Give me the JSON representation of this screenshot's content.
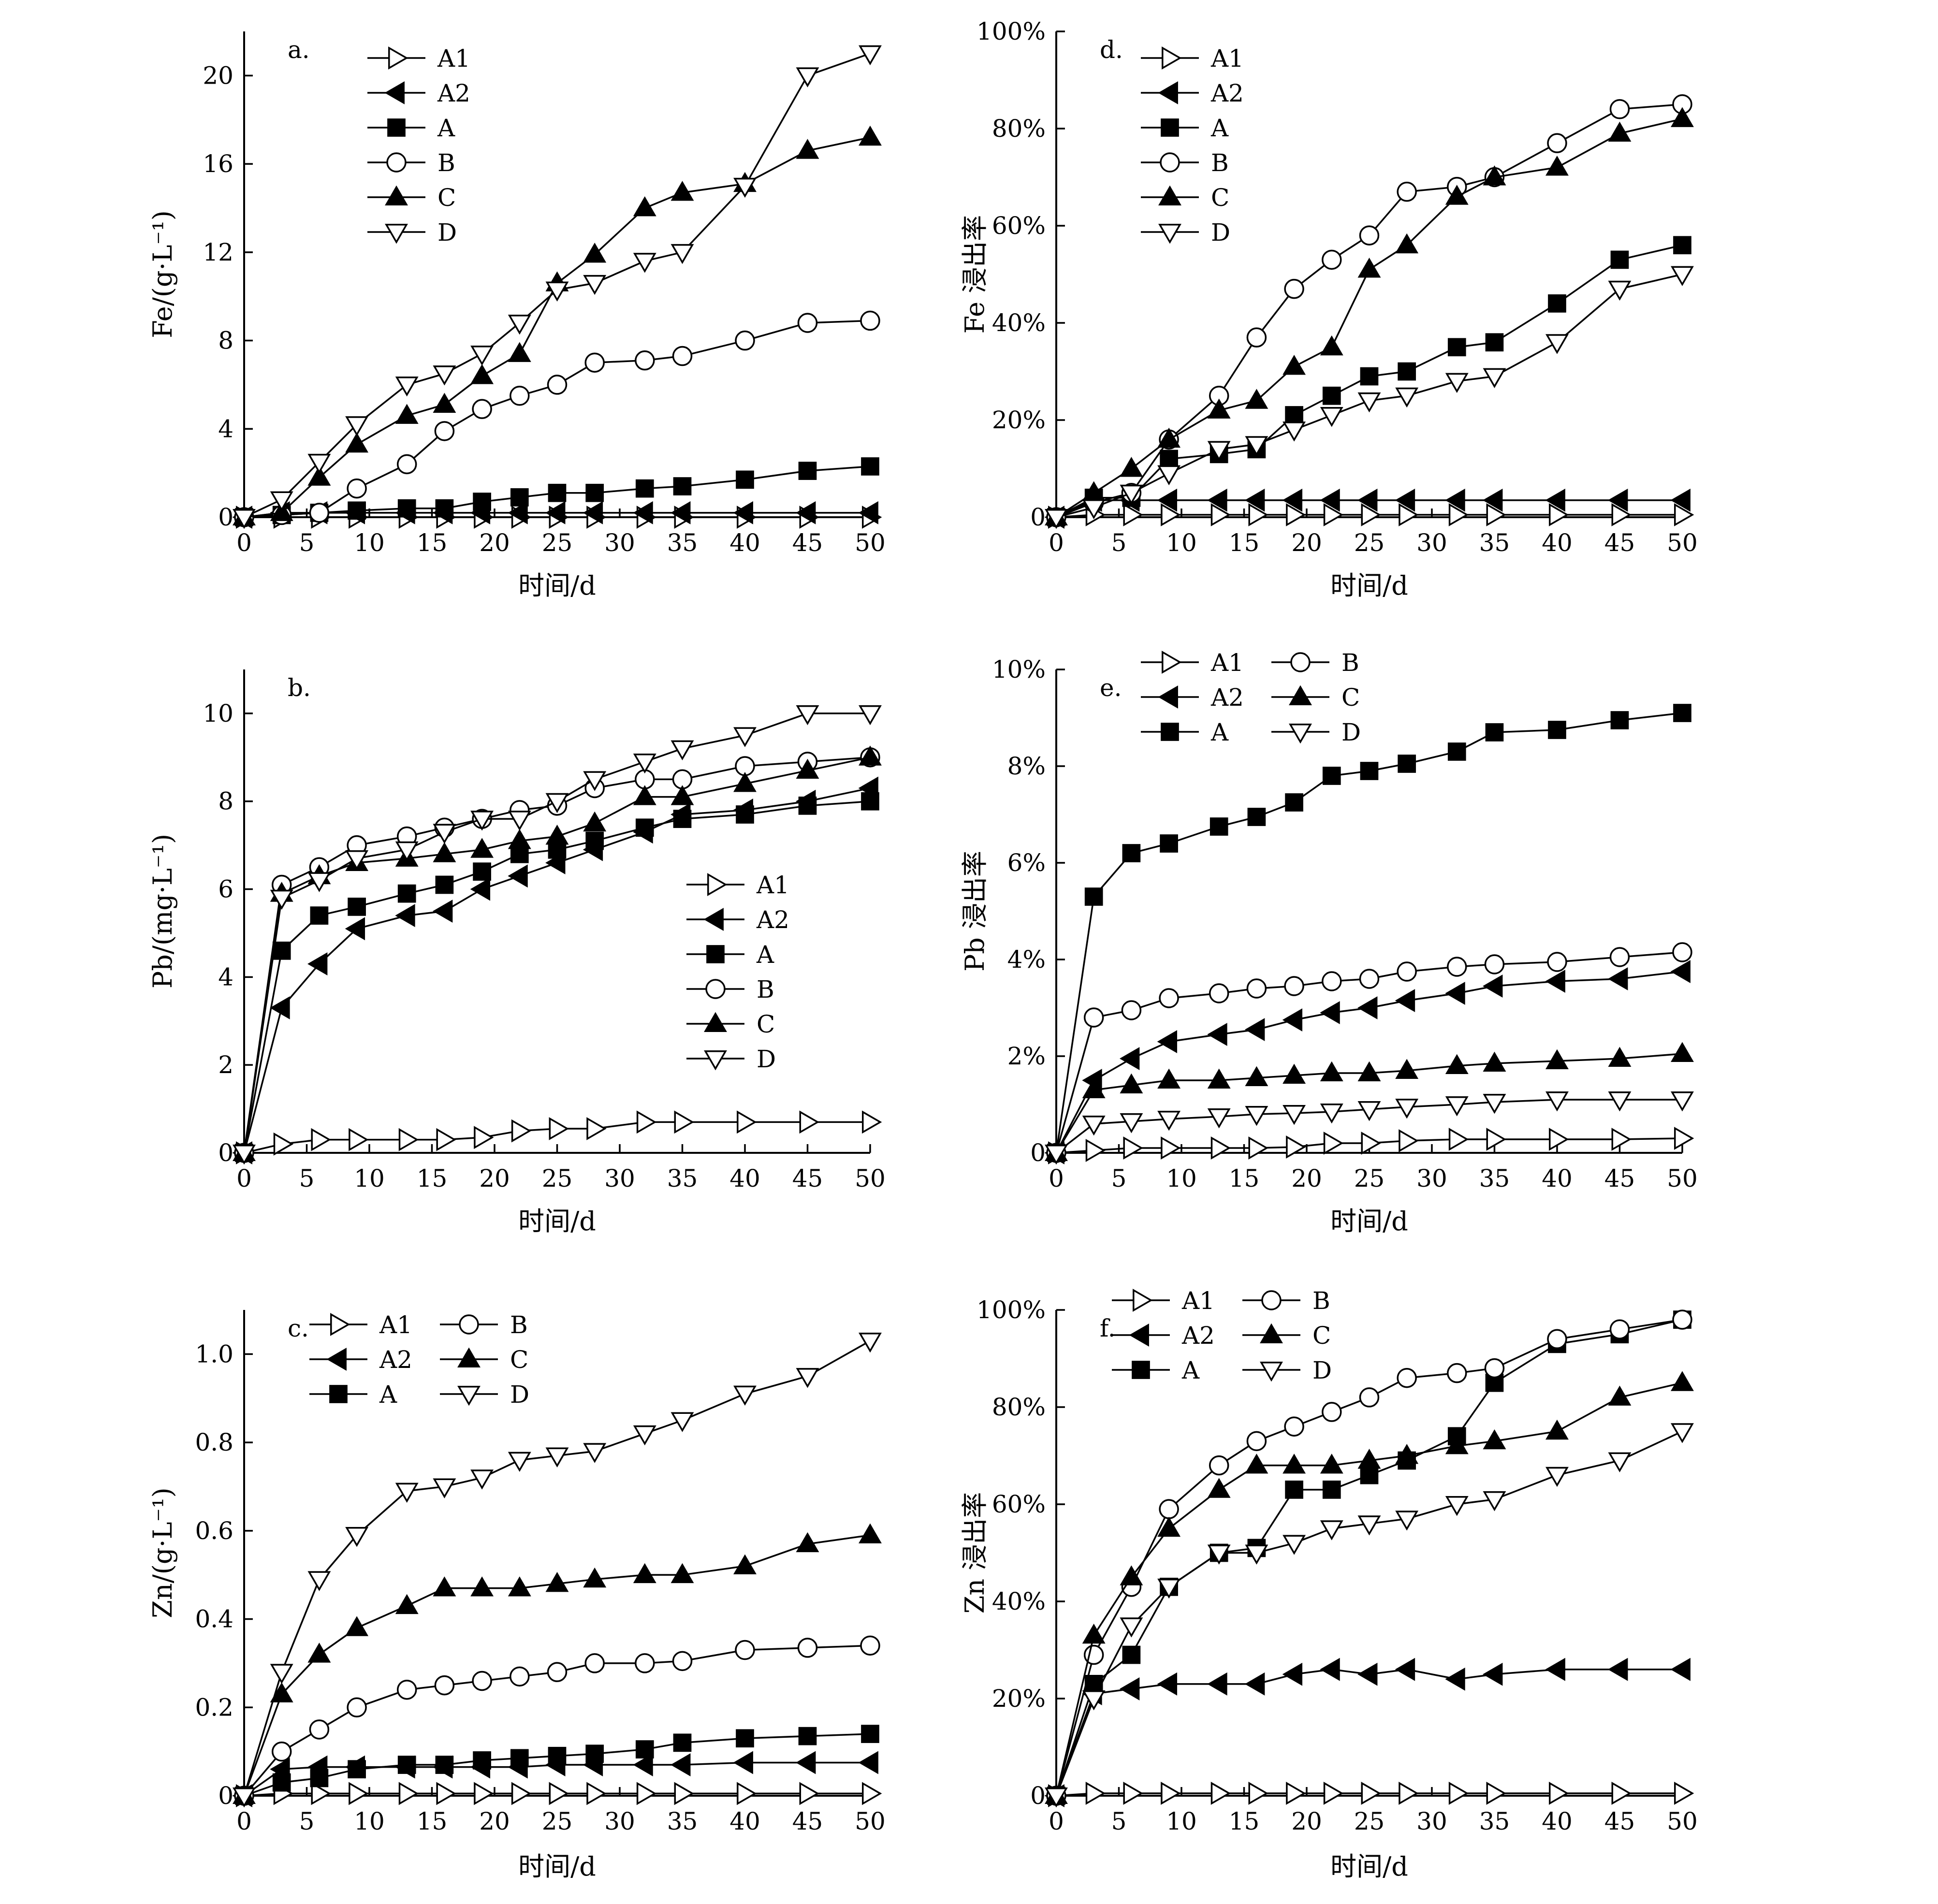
{
  "figure": {
    "xlabel": "时间/d"
  },
  "chart_data": [
    {
      "id": "a",
      "panel_label": "a.",
      "type": "line",
      "ylabel": "Fe/(g·L⁻¹)",
      "xlim": [
        0,
        50
      ],
      "ylim": [
        0,
        22
      ],
      "xticks": [
        0,
        5,
        10,
        15,
        20,
        25,
        30,
        35,
        40,
        45,
        50
      ],
      "yticks": [
        0,
        4,
        8,
        12,
        16,
        20
      ],
      "ytick_labels": [
        "0",
        "4",
        "8",
        "12",
        "16",
        "20"
      ],
      "legend": {
        "placement": "top-center",
        "columns": 1
      },
      "x": [
        0,
        3,
        6,
        9,
        13,
        16,
        19,
        22,
        25,
        28,
        32,
        35,
        40,
        45,
        50
      ],
      "series": [
        {
          "name": "A1",
          "marker": "tri-right-open",
          "values": [
            0,
            0,
            0,
            0,
            0,
            0,
            0,
            0,
            0,
            0,
            0,
            0,
            0,
            0,
            0
          ]
        },
        {
          "name": "A2",
          "marker": "tri-left-filled",
          "values": [
            0,
            0.2,
            0.2,
            0.2,
            0.2,
            0.2,
            0.2,
            0.2,
            0.2,
            0.2,
            0.2,
            0.2,
            0.2,
            0.2,
            0.2
          ]
        },
        {
          "name": "A",
          "marker": "square-filled",
          "values": [
            0,
            0.1,
            0.2,
            0.3,
            0.4,
            0.4,
            0.7,
            0.9,
            1.1,
            1.1,
            1.3,
            1.4,
            1.7,
            2.1,
            2.3
          ]
        },
        {
          "name": "B",
          "marker": "circle-open",
          "values": [
            0,
            0.1,
            0.2,
            1.3,
            2.4,
            3.9,
            4.9,
            5.5,
            6.0,
            7.0,
            7.1,
            7.3,
            8.0,
            8.8,
            8.9
          ]
        },
        {
          "name": "C",
          "marker": "tri-up-filled",
          "values": [
            0,
            0.2,
            1.8,
            3.3,
            4.6,
            5.1,
            6.4,
            7.4,
            10.6,
            11.9,
            14.0,
            14.7,
            15.1,
            16.6,
            17.2
          ]
        },
        {
          "name": "D",
          "marker": "tri-down-open",
          "values": [
            0,
            0.8,
            2.5,
            4.2,
            6.0,
            6.5,
            7.4,
            8.8,
            10.3,
            10.6,
            11.6,
            12.0,
            15.0,
            20.0,
            21.0
          ]
        }
      ]
    },
    {
      "id": "b",
      "panel_label": "b.",
      "type": "line",
      "ylabel": "Pb/(mg·L⁻¹)",
      "xlim": [
        0,
        50
      ],
      "ylim": [
        0,
        11
      ],
      "xticks": [
        0,
        5,
        10,
        15,
        20,
        25,
        30,
        35,
        40,
        45,
        50
      ],
      "yticks": [
        0,
        2,
        4,
        6,
        8,
        10
      ],
      "ytick_labels": [
        "0",
        "2",
        "4",
        "6",
        "8",
        "10"
      ],
      "legend": {
        "placement": "center-right",
        "columns": 1
      },
      "x": [
        0,
        3,
        6,
        9,
        13,
        16,
        19,
        22,
        25,
        28,
        32,
        35,
        40,
        45,
        50
      ],
      "series": [
        {
          "name": "A1",
          "marker": "tri-right-open",
          "values": [
            0,
            0.2,
            0.3,
            0.3,
            0.3,
            0.3,
            0.35,
            0.5,
            0.55,
            0.55,
            0.7,
            0.7,
            0.7,
            0.7,
            0.7
          ]
        },
        {
          "name": "A2",
          "marker": "tri-left-filled",
          "values": [
            0,
            3.3,
            4.3,
            5.1,
            5.4,
            5.5,
            6.0,
            6.3,
            6.6,
            6.9,
            7.3,
            7.7,
            7.8,
            8.0,
            8.3
          ]
        },
        {
          "name": "A",
          "marker": "square-filled",
          "values": [
            0,
            4.6,
            5.4,
            5.6,
            5.9,
            6.1,
            6.4,
            6.8,
            6.9,
            7.1,
            7.4,
            7.6,
            7.7,
            7.9,
            8.0
          ]
        },
        {
          "name": "B",
          "marker": "circle-open",
          "values": [
            0,
            6.1,
            6.5,
            7.0,
            7.2,
            7.4,
            7.6,
            7.8,
            7.9,
            8.3,
            8.5,
            8.5,
            8.8,
            8.9,
            9.0
          ]
        },
        {
          "name": "C",
          "marker": "tri-up-filled",
          "values": [
            0,
            5.9,
            6.3,
            6.6,
            6.7,
            6.8,
            6.9,
            7.1,
            7.2,
            7.5,
            8.1,
            8.1,
            8.4,
            8.7,
            9.0
          ]
        },
        {
          "name": "D",
          "marker": "tri-down-open",
          "values": [
            0,
            5.8,
            6.2,
            6.7,
            6.9,
            7.3,
            7.6,
            7.6,
            8.0,
            8.5,
            8.9,
            9.2,
            9.5,
            10.0,
            10.0
          ]
        }
      ]
    },
    {
      "id": "c",
      "panel_label": "c.",
      "type": "line",
      "ylabel": "Zn/(g·L⁻¹)",
      "xlim": [
        0,
        50
      ],
      "ylim": [
        0,
        1.1
      ],
      "xticks": [
        0,
        5,
        10,
        15,
        20,
        25,
        30,
        35,
        40,
        45,
        50
      ],
      "yticks": [
        0,
        0.2,
        0.4,
        0.6,
        0.8,
        1.0
      ],
      "ytick_labels": [
        "0",
        "0.2",
        "0.4",
        "0.6",
        "0.8",
        "1.0"
      ],
      "legend": {
        "placement": "top-center",
        "columns": 2
      },
      "x": [
        0,
        3,
        6,
        9,
        13,
        16,
        19,
        22,
        25,
        28,
        32,
        35,
        40,
        45,
        50
      ],
      "series": [
        {
          "name": "A1",
          "marker": "tri-right-open",
          "values": [
            0,
            0.005,
            0.005,
            0.005,
            0.005,
            0.005,
            0.005,
            0.005,
            0.005,
            0.005,
            0.005,
            0.005,
            0.005,
            0.005,
            0.005
          ]
        },
        {
          "name": "A2",
          "marker": "tri-left-filled",
          "values": [
            0,
            0.06,
            0.065,
            0.065,
            0.065,
            0.065,
            0.065,
            0.065,
            0.07,
            0.07,
            0.07,
            0.07,
            0.075,
            0.075,
            0.075
          ]
        },
        {
          "name": "A",
          "marker": "square-filled",
          "values": [
            0,
            0.03,
            0.04,
            0.06,
            0.07,
            0.07,
            0.08,
            0.085,
            0.09,
            0.095,
            0.105,
            0.12,
            0.13,
            0.135,
            0.14
          ]
        },
        {
          "name": "B",
          "marker": "circle-open",
          "values": [
            0,
            0.1,
            0.15,
            0.2,
            0.24,
            0.25,
            0.26,
            0.27,
            0.28,
            0.3,
            0.3,
            0.305,
            0.33,
            0.335,
            0.34
          ]
        },
        {
          "name": "C",
          "marker": "tri-up-filled",
          "values": [
            0,
            0.23,
            0.32,
            0.38,
            0.43,
            0.47,
            0.47,
            0.47,
            0.48,
            0.49,
            0.5,
            0.5,
            0.52,
            0.57,
            0.59
          ]
        },
        {
          "name": "D",
          "marker": "tri-down-open",
          "values": [
            0,
            0.28,
            0.49,
            0.59,
            0.69,
            0.7,
            0.72,
            0.76,
            0.77,
            0.78,
            0.82,
            0.85,
            0.91,
            0.95,
            1.03
          ]
        }
      ]
    },
    {
      "id": "d",
      "panel_label": "d.",
      "type": "line",
      "ylabel": "Fe 浸出率",
      "xlim": [
        0,
        50
      ],
      "ylim": [
        0,
        100
      ],
      "xticks": [
        0,
        5,
        10,
        15,
        20,
        25,
        30,
        35,
        40,
        45,
        50
      ],
      "yticks": [
        0,
        20,
        40,
        60,
        80,
        100
      ],
      "ytick_labels": [
        "0",
        "20%",
        "40%",
        "60%",
        "80%",
        "100%"
      ],
      "legend": {
        "placement": "top-center",
        "columns": 1
      },
      "x": [
        0,
        3,
        6,
        9,
        13,
        16,
        19,
        22,
        25,
        28,
        32,
        35,
        40,
        45,
        50
      ],
      "series": [
        {
          "name": "A1",
          "marker": "tri-right-open",
          "values": [
            0,
            0.5,
            0.5,
            0.5,
            0.5,
            0.5,
            0.5,
            0.5,
            0.5,
            0.5,
            0.5,
            0.5,
            0.5,
            0.5,
            0.5
          ]
        },
        {
          "name": "A2",
          "marker": "tri-left-filled",
          "values": [
            0,
            3.5,
            3.5,
            3.5,
            3.5,
            3.5,
            3.5,
            3.5,
            3.5,
            3.5,
            3.5,
            3.5,
            3.5,
            3.5,
            3.5
          ]
        },
        {
          "name": "A",
          "marker": "square-filled",
          "values": [
            0,
            4,
            4,
            12,
            13,
            14,
            21,
            25,
            29,
            30,
            35,
            36,
            44,
            53,
            56
          ]
        },
        {
          "name": "B",
          "marker": "circle-open",
          "values": [
            0,
            3,
            5,
            16,
            25,
            37,
            47,
            53,
            58,
            67,
            68,
            70,
            77,
            84,
            85
          ]
        },
        {
          "name": "C",
          "marker": "tri-up-filled",
          "values": [
            0,
            5,
            10,
            16,
            22,
            24,
            31,
            35,
            51,
            56,
            66,
            70,
            72,
            79,
            82
          ]
        },
        {
          "name": "D",
          "marker": "tri-down-open",
          "values": [
            0,
            2,
            5,
            9,
            14,
            15,
            18,
            21,
            24,
            25,
            28,
            29,
            36,
            47,
            50
          ]
        }
      ]
    },
    {
      "id": "e",
      "panel_label": "e.",
      "type": "line",
      "ylabel": "Pb 浸出率",
      "xlim": [
        0,
        50
      ],
      "ylim": [
        0,
        10
      ],
      "xticks": [
        0,
        5,
        10,
        15,
        20,
        25,
        30,
        35,
        40,
        45,
        50
      ],
      "yticks": [
        0,
        2,
        4,
        6,
        8,
        10
      ],
      "ytick_labels": [
        "0",
        "2%",
        "4%",
        "6%",
        "8%",
        "10%"
      ],
      "legend": {
        "placement": "top-left",
        "columns": 2
      },
      "x": [
        0,
        3,
        6,
        9,
        13,
        16,
        19,
        22,
        25,
        28,
        32,
        35,
        40,
        45,
        50
      ],
      "series": [
        {
          "name": "A1",
          "marker": "tri-right-open",
          "values": [
            0,
            0.05,
            0.1,
            0.1,
            0.1,
            0.1,
            0.12,
            0.2,
            0.2,
            0.25,
            0.28,
            0.28,
            0.28,
            0.28,
            0.3
          ]
        },
        {
          "name": "A2",
          "marker": "tri-left-filled",
          "values": [
            0,
            1.5,
            1.95,
            2.3,
            2.45,
            2.55,
            2.75,
            2.9,
            3.0,
            3.15,
            3.3,
            3.45,
            3.55,
            3.6,
            3.75
          ]
        },
        {
          "name": "A",
          "marker": "square-filled",
          "values": [
            0,
            5.3,
            6.2,
            6.4,
            6.75,
            6.95,
            7.25,
            7.8,
            7.9,
            8.05,
            8.3,
            8.7,
            8.75,
            8.95,
            9.1
          ]
        },
        {
          "name": "B",
          "marker": "circle-open",
          "values": [
            0,
            2.8,
            2.95,
            3.2,
            3.3,
            3.4,
            3.45,
            3.55,
            3.6,
            3.75,
            3.85,
            3.9,
            3.95,
            4.05,
            4.15
          ]
        },
        {
          "name": "C",
          "marker": "tri-up-filled",
          "values": [
            0,
            1.3,
            1.4,
            1.5,
            1.5,
            1.55,
            1.6,
            1.65,
            1.65,
            1.7,
            1.8,
            1.85,
            1.9,
            1.95,
            2.05
          ]
        },
        {
          "name": "D",
          "marker": "tri-down-open",
          "values": [
            0,
            0.6,
            0.65,
            0.7,
            0.75,
            0.8,
            0.82,
            0.85,
            0.9,
            0.95,
            1.0,
            1.05,
            1.1,
            1.1,
            1.1
          ]
        }
      ]
    },
    {
      "id": "f",
      "panel_label": "f.",
      "type": "line",
      "ylabel": "Zn 浸出率",
      "xlim": [
        0,
        50
      ],
      "ylim": [
        0,
        100
      ],
      "xticks": [
        0,
        5,
        10,
        15,
        20,
        25,
        30,
        35,
        40,
        45,
        50
      ],
      "yticks": [
        0,
        20,
        40,
        60,
        80,
        100
      ],
      "ytick_labels": [
        "0",
        "20%",
        "40%",
        "60%",
        "80%",
        "100%"
      ],
      "legend": {
        "placement": "top-left",
        "columns": 2
      },
      "x": [
        0,
        3,
        6,
        9,
        13,
        16,
        19,
        22,
        25,
        28,
        32,
        35,
        40,
        45,
        50
      ],
      "series": [
        {
          "name": "A1",
          "marker": "tri-right-open",
          "values": [
            0,
            0.5,
            0.5,
            0.5,
            0.5,
            0.5,
            0.5,
            0.5,
            0.5,
            0.5,
            0.5,
            0.5,
            0.5,
            0.5,
            0.5
          ]
        },
        {
          "name": "A2",
          "marker": "tri-left-filled",
          "values": [
            0,
            21,
            22,
            23,
            23,
            23,
            25,
            26,
            25,
            26,
            24,
            25,
            26,
            26,
            26
          ]
        },
        {
          "name": "A",
          "marker": "square-filled",
          "values": [
            0,
            23,
            29,
            43,
            50,
            51,
            63,
            63,
            66,
            69,
            74,
            85,
            93,
            95,
            98
          ]
        },
        {
          "name": "B",
          "marker": "circle-open",
          "values": [
            0,
            29,
            43,
            59,
            68,
            73,
            76,
            79,
            82,
            86,
            87,
            88,
            94,
            96,
            98
          ]
        },
        {
          "name": "C",
          "marker": "tri-up-filled",
          "values": [
            0,
            33,
            45,
            55,
            63,
            68,
            68,
            68,
            69,
            70,
            72,
            73,
            75,
            82,
            85
          ]
        },
        {
          "name": "D",
          "marker": "tri-down-open",
          "values": [
            0,
            20,
            35,
            43,
            50,
            50,
            52,
            55,
            56,
            57,
            60,
            61,
            66,
            69,
            75
          ]
        }
      ]
    }
  ]
}
